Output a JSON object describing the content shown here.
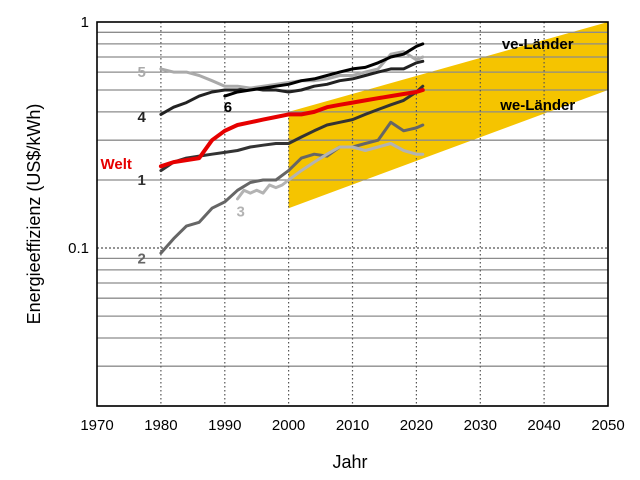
{
  "chart_data": {
    "type": "line",
    "xlabel": "Jahr",
    "ylabel": "Energieeffizienz (US$/kWh)",
    "yscale": "log",
    "xlim": [
      1970,
      2050
    ],
    "ylim": [
      0.02,
      1
    ],
    "x_ticks": [
      1970,
      1980,
      1990,
      2000,
      2010,
      2020,
      2030,
      2040,
      2050
    ],
    "y_ticks": [
      {
        "value": 0.1,
        "label": "0.1"
      },
      {
        "value": 1,
        "label": "1"
      }
    ],
    "grid": {
      "x": "dotted",
      "y": "major dotted, minor solid"
    },
    "band": {
      "color": "#f5c400",
      "lower": {
        "x": [
          2000,
          2050
        ],
        "y": [
          0.15,
          0.5
        ]
      },
      "upper": {
        "x": [
          2000,
          2050
        ],
        "y": [
          0.4,
          1.3
        ]
      },
      "labels": [
        {
          "text": "ve-Länder",
          "x": 2039,
          "y": 0.8
        },
        {
          "text": "we-Länder",
          "x": 2039,
          "y": 0.43
        }
      ]
    },
    "series": [
      {
        "name": "1",
        "color": "#333333",
        "width": 3,
        "label": {
          "text": "1",
          "x": 1977,
          "y": 0.2
        },
        "x": [
          1980,
          1982,
          1984,
          1986,
          1988,
          1990,
          1992,
          1994,
          1996,
          1998,
          2000,
          2002,
          2004,
          2006,
          2008,
          2010,
          2012,
          2014,
          2016,
          2018,
          2020,
          2021
        ],
        "y": [
          0.22,
          0.24,
          0.25,
          0.255,
          0.26,
          0.265,
          0.27,
          0.28,
          0.285,
          0.29,
          0.29,
          0.31,
          0.33,
          0.35,
          0.36,
          0.37,
          0.39,
          0.41,
          0.43,
          0.45,
          0.49,
          0.52
        ]
      },
      {
        "name": "2",
        "color": "#666666",
        "width": 3,
        "label": {
          "text": "2",
          "x": 1977,
          "y": 0.09
        },
        "x": [
          1980,
          1982,
          1984,
          1986,
          1988,
          1990,
          1992,
          1994,
          1996,
          1998,
          2000,
          2002,
          2004,
          2006,
          2008,
          2010,
          2012,
          2014,
          2016,
          2018,
          2020,
          2021
        ],
        "y": [
          0.095,
          0.11,
          0.125,
          0.13,
          0.15,
          0.16,
          0.18,
          0.195,
          0.2,
          0.2,
          0.22,
          0.25,
          0.26,
          0.255,
          0.28,
          0.28,
          0.29,
          0.3,
          0.36,
          0.33,
          0.34,
          0.35
        ]
      },
      {
        "name": "3",
        "color": "#b3b3b3",
        "width": 3,
        "label": {
          "text": "3",
          "x": 1992.5,
          "y": 0.145
        },
        "x": [
          1992,
          1993,
          1994,
          1995,
          1996,
          1997,
          1998,
          1999,
          2000,
          2002,
          2004,
          2006,
          2008,
          2010,
          2012,
          2014,
          2016,
          2018,
          2020,
          2021
        ],
        "y": [
          0.165,
          0.18,
          0.175,
          0.18,
          0.175,
          0.19,
          0.185,
          0.19,
          0.2,
          0.22,
          0.24,
          0.26,
          0.28,
          0.28,
          0.27,
          0.28,
          0.29,
          0.27,
          0.26,
          0.26
        ]
      },
      {
        "name": "4",
        "color": "#222222",
        "width": 3,
        "label": {
          "text": "4",
          "x": 1977,
          "y": 0.38
        },
        "x": [
          1980,
          1982,
          1984,
          1986,
          1988,
          1990,
          1992,
          1994,
          1996,
          1998,
          2000,
          2002,
          2004,
          2006,
          2008,
          2010,
          2012,
          2014,
          2016,
          2018,
          2020,
          2021
        ],
        "y": [
          0.39,
          0.42,
          0.44,
          0.47,
          0.49,
          0.5,
          0.5,
          0.51,
          0.5,
          0.5,
          0.49,
          0.5,
          0.52,
          0.53,
          0.55,
          0.56,
          0.58,
          0.6,
          0.62,
          0.62,
          0.66,
          0.67
        ]
      },
      {
        "name": "5",
        "color": "#aaaaaa",
        "width": 3,
        "label": {
          "text": "5",
          "x": 1977,
          "y": 0.6
        },
        "x": [
          1980,
          1982,
          1984,
          1986,
          1988,
          1990,
          1992,
          1994,
          1996,
          1998,
          2000,
          2002,
          2004,
          2006,
          2008,
          2010,
          2012,
          2014,
          2016,
          2018,
          2020,
          2021
        ],
        "y": [
          0.62,
          0.6,
          0.6,
          0.58,
          0.55,
          0.52,
          0.52,
          0.51,
          0.52,
          0.53,
          0.54,
          0.55,
          0.55,
          0.56,
          0.58,
          0.58,
          0.6,
          0.62,
          0.72,
          0.74,
          0.68,
          0.7
        ]
      },
      {
        "name": "6",
        "color": "#000000",
        "width": 3,
        "label": {
          "text": "6",
          "x": 1990.5,
          "y": 0.42
        },
        "x": [
          1990,
          1992,
          1994,
          1996,
          1998,
          2000,
          2002,
          2004,
          2006,
          2008,
          2010,
          2012,
          2014,
          2016,
          2018,
          2020,
          2021
        ],
        "y": [
          0.47,
          0.49,
          0.5,
          0.51,
          0.52,
          0.53,
          0.55,
          0.56,
          0.58,
          0.6,
          0.62,
          0.63,
          0.66,
          0.7,
          0.72,
          0.78,
          0.8
        ]
      },
      {
        "name": "Welt",
        "color": "#e60000",
        "width": 4,
        "label": {
          "text": "Welt",
          "x": 1973,
          "y": 0.235
        },
        "x": [
          1980,
          1982,
          1984,
          1986,
          1988,
          1990,
          1992,
          1994,
          1996,
          1998,
          2000,
          2002,
          2004,
          2006,
          2008,
          2010,
          2012,
          2014,
          2016,
          2018,
          2020,
          2021
        ],
        "y": [
          0.23,
          0.24,
          0.245,
          0.25,
          0.3,
          0.33,
          0.35,
          0.36,
          0.37,
          0.38,
          0.39,
          0.39,
          0.4,
          0.42,
          0.43,
          0.44,
          0.45,
          0.46,
          0.47,
          0.48,
          0.49,
          0.5
        ]
      }
    ]
  }
}
